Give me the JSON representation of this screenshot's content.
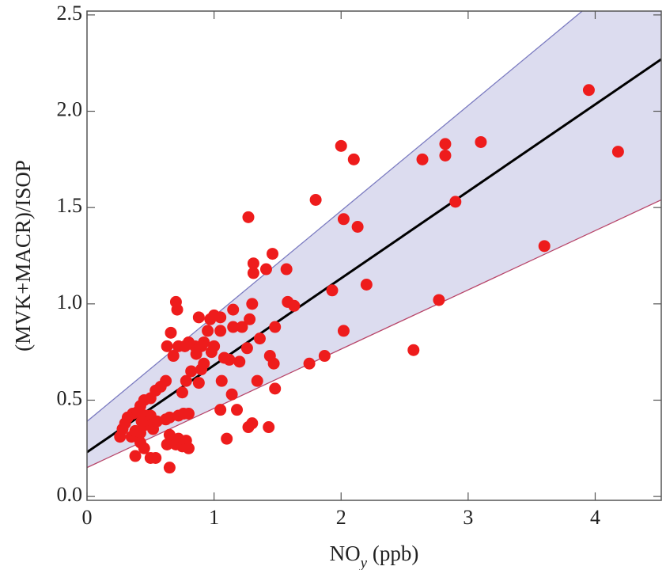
{
  "chart_data": {
    "type": "scatter",
    "ylabel": "(MVK+MACR)/ISOP",
    "xlabel": [
      "NO",
      "y",
      " (ppb)"
    ],
    "xlim": [
      0,
      4.52
    ],
    "ylim": [
      -0.02,
      2.52
    ],
    "xticks": [
      0,
      1,
      2,
      3,
      4
    ],
    "yticks": [
      {
        "value": 0,
        "label": "0.0"
      },
      0.5,
      {
        "value": 1,
        "label": "1.0"
      },
      1.5,
      {
        "value": 2,
        "label": "2.0"
      },
      2.5
    ],
    "series": [
      {
        "type": "band",
        "color": "#d6d6ec",
        "upper_color": "#7a7ac0",
        "lower_color": "#b8466a",
        "x": [
          0,
          4.52
        ],
        "upper": [
          0.39,
          2.86
        ],
        "lower": [
          0.15,
          1.54
        ]
      },
      {
        "type": "line",
        "color": "#000000",
        "x": [
          0,
          4.52
        ],
        "values": [
          0.23,
          2.27
        ]
      },
      {
        "type": "scatter",
        "color": "#ee1c1c",
        "x": [
          3.95,
          4.18,
          3.1,
          2.82,
          2.82,
          2.64,
          2.0,
          2.1,
          2.9,
          1.8,
          2.02,
          2.13,
          1.27,
          3.6,
          1.46,
          1.31,
          1.31,
          1.41,
          1.57,
          2.2,
          1.93,
          2.77,
          2.57,
          2.02,
          1.87,
          1.75,
          1.58,
          1.63,
          1.48,
          1.47,
          1.48,
          1.43,
          1.34,
          1.3,
          1.3,
          1.27,
          1.44,
          1.36,
          1.22,
          1.26,
          1.28,
          1.2,
          1.15,
          1.15,
          1.12,
          1.08,
          1.06,
          1.1,
          1.14,
          1.18,
          1.05,
          1.05,
          1.05,
          1.0,
          0.97,
          0.95,
          0.92,
          0.88,
          0.9,
          0.86,
          0.85,
          0.8,
          0.77,
          0.72,
          0.7,
          0.71,
          0.68,
          0.66,
          0.63,
          0.62,
          0.58,
          0.54,
          0.5,
          0.45,
          0.42,
          0.4,
          0.36,
          0.32,
          0.3,
          0.28,
          0.26,
          0.35,
          0.38,
          0.42,
          0.45,
          0.48,
          0.5,
          0.52,
          0.42,
          0.45,
          0.38,
          0.5,
          0.54,
          0.65,
          0.63,
          0.67,
          0.7,
          0.72,
          0.75,
          0.78,
          0.8,
          0.65,
          0.62,
          0.65,
          0.72,
          0.76,
          0.8,
          0.75,
          0.78,
          0.82,
          0.88,
          0.9,
          0.92,
          0.98,
          1.0,
          0.46,
          0.43,
          0.55
        ],
        "values": [
          2.11,
          1.79,
          1.84,
          1.83,
          1.77,
          1.75,
          1.82,
          1.75,
          1.53,
          1.54,
          1.44,
          1.4,
          1.45,
          1.3,
          1.26,
          1.21,
          1.16,
          1.18,
          1.18,
          1.1,
          1.07,
          1.02,
          0.76,
          0.86,
          0.73,
          0.69,
          1.01,
          0.99,
          0.88,
          0.69,
          0.56,
          0.36,
          0.6,
          1.0,
          0.38,
          0.36,
          0.73,
          0.82,
          0.88,
          0.77,
          0.92,
          0.7,
          0.97,
          0.88,
          0.71,
          0.72,
          0.6,
          0.3,
          0.53,
          0.45,
          0.45,
          0.86,
          0.93,
          0.94,
          0.92,
          0.86,
          0.8,
          0.93,
          0.78,
          0.74,
          0.78,
          0.8,
          0.78,
          0.78,
          1.01,
          0.97,
          0.73,
          0.85,
          0.78,
          0.6,
          0.57,
          0.55,
          0.51,
          0.5,
          0.47,
          0.44,
          0.43,
          0.41,
          0.38,
          0.35,
          0.31,
          0.31,
          0.34,
          0.33,
          0.37,
          0.4,
          0.42,
          0.35,
          0.28,
          0.25,
          0.21,
          0.2,
          0.2,
          0.15,
          0.27,
          0.3,
          0.27,
          0.3,
          0.26,
          0.29,
          0.25,
          0.32,
          0.4,
          0.41,
          0.42,
          0.43,
          0.43,
          0.54,
          0.6,
          0.65,
          0.59,
          0.66,
          0.69,
          0.75,
          0.78,
          0.42,
          0.39,
          0.39
        ]
      }
    ]
  }
}
